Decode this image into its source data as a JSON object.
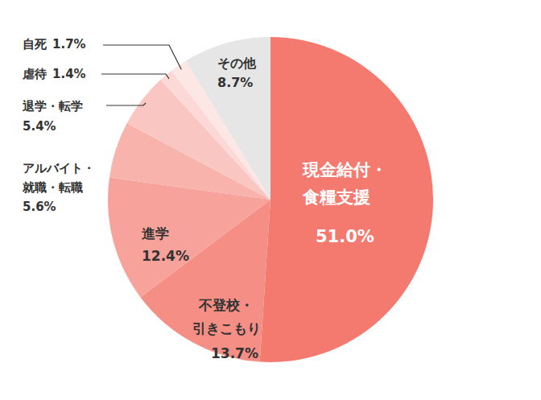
{
  "chart_data": {
    "type": "pie",
    "categories": [
      "現金給付・\n食糧支援",
      "不登校・\n引きこもり",
      "進学",
      "アルバイト・\n就職・転職",
      "退学・転学",
      "虐待",
      "自死",
      "その他"
    ],
    "values": [
      51.0,
      13.7,
      12.4,
      5.6,
      5.4,
      1.4,
      1.7,
      8.7
    ],
    "value_labels": [
      "51.0%",
      "13.7%",
      "12.4%",
      "5.6%",
      "5.4%",
      "1.4%",
      "1.7%",
      "8.7%"
    ],
    "colors": [
      "#f47a70",
      "#f58e85",
      "#f7a39b",
      "#f8b3ac",
      "#fac6c1",
      "#fcd9d6",
      "#fde7e5",
      "#e6e6e6"
    ],
    "data_labels": true
  }
}
